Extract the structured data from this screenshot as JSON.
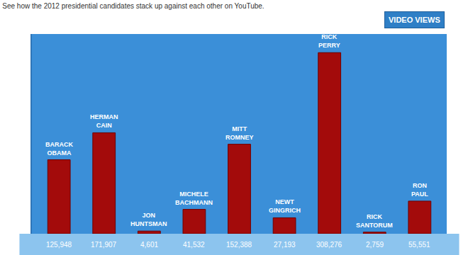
{
  "chart_data": {
    "type": "bar",
    "title": "See how the 2012 presidential candidates stack up against each other on YouTube.",
    "annotations": [
      "VIDEO VIEWS"
    ],
    "categories": [
      "BARACK OBAMA",
      "HERMAN CAIN",
      "JON HUNTSMAN",
      "MICHELE BACHMANN",
      "MITT ROMNEY",
      "NEWT GINGRICH",
      "RICK PERRY",
      "RICK SANTORUM",
      "RON PAUL"
    ],
    "values": [
      125948,
      171907,
      4601,
      41532,
      152388,
      27193,
      308276,
      2759,
      55551
    ],
    "value_labels": [
      "125,948",
      "171,907",
      "4,601",
      "41,532",
      "152,388",
      "27,193",
      "308,276",
      "2,759",
      "55,551"
    ],
    "color": "#a30b0b",
    "ylim": [
      0,
      340000
    ],
    "data_labels": true,
    "tick_labels": false,
    "grid": false
  }
}
